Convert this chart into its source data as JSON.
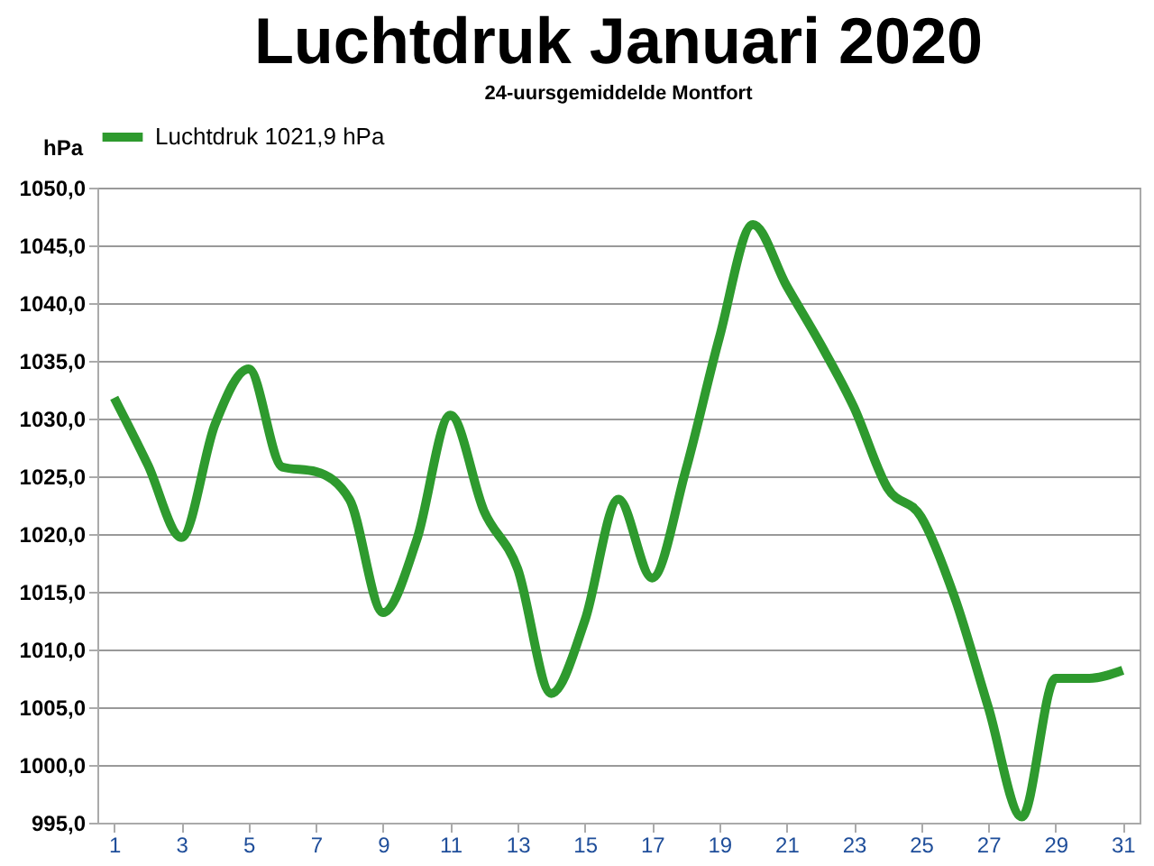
{
  "chart_data": {
    "type": "line",
    "title": "Luchtdruk Januari 2020",
    "subtitle": "24-uursgemiddelde Montfort",
    "ylabel": "hPa",
    "x": [
      1,
      2,
      3,
      4,
      5,
      6,
      7,
      8,
      9,
      10,
      11,
      12,
      13,
      14,
      15,
      16,
      17,
      18,
      19,
      20,
      21,
      22,
      23,
      24,
      25,
      26,
      27,
      28,
      29,
      30,
      31
    ],
    "series": [
      {
        "name": "Luchtdruk 1021,9 hPa",
        "color": "#2e9a2e",
        "values": [
          1031.8,
          1026,
          1019.7,
          1029.5,
          1034.3,
          1025.8,
          1025.4,
          1023,
          1013.2,
          1019.5,
          1030.3,
          1022,
          1017,
          1006.2,
          1012.5,
          1023,
          1016.2,
          1025.5,
          1037,
          1046.8,
          1041.5,
          1036.5,
          1031,
          1024,
          1021.5,
          1014.5,
          1005,
          995.5,
          1007.5,
          1007.5,
          1008.2
        ]
      }
    ],
    "xlim": [
      0.5,
      31.5
    ],
    "xticks": [
      1,
      3,
      5,
      7,
      9,
      11,
      13,
      15,
      17,
      19,
      21,
      23,
      25,
      27,
      29,
      31
    ],
    "ylim": [
      995,
      1050
    ],
    "yticks": [
      {
        "value": 995,
        "label": "995,0"
      },
      {
        "value": 1000,
        "label": "1000,0"
      },
      {
        "value": 1005,
        "label": "1005,0"
      },
      {
        "value": 1010,
        "label": "1010,0"
      },
      {
        "value": 1015,
        "label": "1015,0"
      },
      {
        "value": 1020,
        "label": "1020,0"
      },
      {
        "value": 1025,
        "label": "1025,0"
      },
      {
        "value": 1030,
        "label": "1030,0"
      },
      {
        "value": 1035,
        "label": "1035,0"
      },
      {
        "value": 1040,
        "label": "1040,0"
      },
      {
        "value": 1045,
        "label": "1045,0"
      },
      {
        "value": 1050,
        "label": "1050,0"
      }
    ],
    "grid": "y",
    "legend": "top",
    "marker": "none",
    "line_style": "solid"
  }
}
